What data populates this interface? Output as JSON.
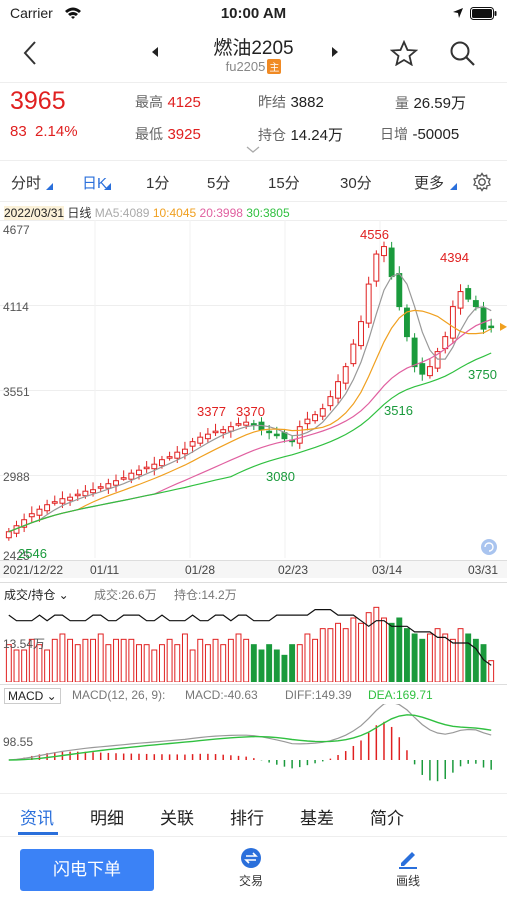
{
  "status": {
    "carrier": "Carrier",
    "time": "10:00 AM"
  },
  "nav": {
    "title": "燃油2205",
    "subtitle": "fu2205",
    "badge": "主"
  },
  "quote": {
    "price": "3965",
    "change": "83",
    "change_pct": "2.14%",
    "high_label": "最高",
    "high": "4125",
    "low_label": "最低",
    "low": "3925",
    "prev_settle_label": "昨结",
    "prev_settle": "3882",
    "oi_label": "持仓",
    "oi": "14.24万",
    "vol_label": "量",
    "vol": "26.59万",
    "daily_inc_label": "日增",
    "daily_inc": "-50005"
  },
  "periods": [
    "分时",
    "日K",
    "1分",
    "5分",
    "15分",
    "30分",
    "更多"
  ],
  "ma": {
    "date": "2022/03/31",
    "type": "日线",
    "ma5": "MA5:4089",
    "ma10": "10:4045",
    "ma20": "20:3998",
    "ma30": "30:3805"
  },
  "colors": {
    "up": "#e02020",
    "down": "#1a9a3c",
    "ma5": "#999999",
    "ma10": "#f0a020",
    "ma20": "#e060a0",
    "ma30": "#30c040",
    "accent": "#2a6fdb"
  },
  "axis": {
    "y_labels": [
      "4677",
      "4114",
      "3551",
      "2988",
      "2425"
    ],
    "x_labels": [
      "2021/12/22",
      "01/11",
      "01/28",
      "02/23",
      "03/14",
      "03/31"
    ]
  },
  "annotations": {
    "high": "4556",
    "high2": "4394",
    "a3377": "3377",
    "a3370": "3370",
    "a3080": "3080",
    "a3516": "3516",
    "a3750": "3750",
    "low": "2546"
  },
  "volume": {
    "label": "成交/持仓",
    "vol_text": "成交:26.6万",
    "oi_text": "持仓:14.2万",
    "axis_label": "13.54万"
  },
  "macd": {
    "label": "MACD",
    "params": "MACD(12, 26, 9):",
    "macd": "MACD:-40.63",
    "diff": "DIFF:149.39",
    "dea": "DEA:169.71",
    "axis_label": "98.55"
  },
  "bottom_tabs": [
    "资讯",
    "明细",
    "关联",
    "排行",
    "基差",
    "简介"
  ],
  "footer": {
    "flash": "闪电下单",
    "trade": "交易",
    "draw": "画线"
  },
  "chart_data": {
    "type": "candlestick",
    "y_range": [
      2425,
      4677
    ],
    "closes": [
      2600,
      2640,
      2680,
      2720,
      2750,
      2780,
      2800,
      2820,
      2830,
      2850,
      2870,
      2880,
      2900,
      2920,
      2940,
      2960,
      2990,
      3010,
      3030,
      3050,
      3080,
      3100,
      3130,
      3150,
      3200,
      3230,
      3250,
      3270,
      3280,
      3300,
      3320,
      3330,
      3310,
      3280,
      3260,
      3240,
      3220,
      3200,
      3300,
      3350,
      3380,
      3420,
      3500,
      3600,
      3700,
      3850,
      4000,
      4250,
      4450,
      4500,
      4300,
      4100,
      3900,
      3700,
      3650,
      3700,
      3800,
      3900,
      4100,
      4200,
      4150,
      4100,
      3950,
      3965
    ],
    "volume_vals": [
      7,
      6,
      6,
      8,
      7,
      6,
      8,
      9,
      8,
      7,
      8,
      8,
      9,
      7,
      8,
      8,
      8,
      7,
      7,
      6,
      7,
      8,
      7,
      9,
      6,
      8,
      7,
      8,
      7,
      8,
      9,
      8,
      7,
      6,
      7,
      6,
      5,
      7,
      7,
      9,
      8,
      10,
      10,
      11,
      10,
      12,
      11,
      13,
      14,
      12,
      11,
      12,
      10,
      9,
      8,
      9,
      10,
      9,
      8,
      10,
      9,
      8,
      7,
      4
    ],
    "oi_vals": [
      12,
      11,
      11,
      11,
      12,
      11,
      12,
      12,
      11,
      11,
      11,
      12,
      12,
      11,
      11,
      12,
      12,
      12,
      11,
      11,
      12,
      11,
      11,
      11,
      12,
      11,
      11,
      12,
      12,
      11,
      12,
      12,
      11,
      11,
      11,
      12,
      12,
      12,
      12,
      12,
      13,
      13,
      13,
      12,
      12,
      12,
      11,
      10,
      11,
      11,
      10,
      10,
      10,
      9,
      9,
      9,
      8,
      8,
      7,
      7,
      7,
      6,
      4,
      3
    ]
  }
}
